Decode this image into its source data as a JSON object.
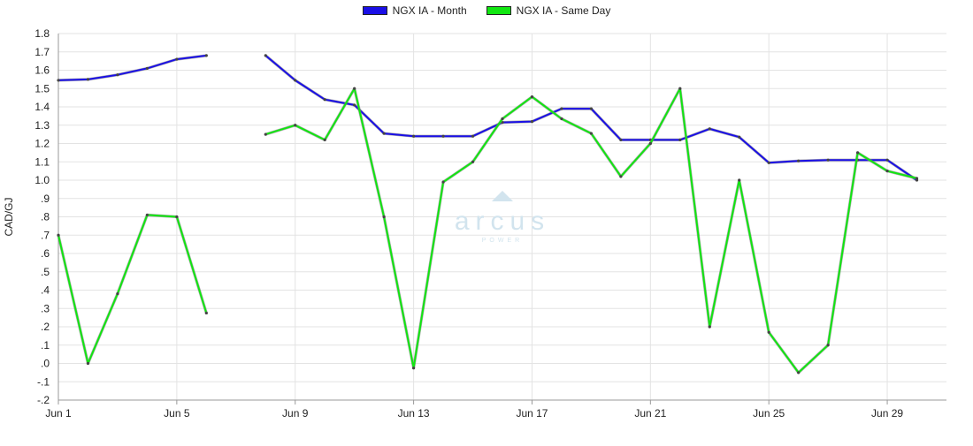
{
  "chart_data": {
    "type": "line",
    "ylabel": "CAD/GJ",
    "ylim": [
      -0.2,
      1.8
    ],
    "yticks": [
      -0.2,
      -0.1,
      0.0,
      0.1,
      0.2,
      0.3,
      0.4,
      0.5,
      0.6,
      0.7,
      0.8,
      0.9,
      1.0,
      1.1,
      1.2,
      1.3,
      1.4,
      1.5,
      1.6,
      1.7,
      1.8
    ],
    "ytick_labels": [
      "-.2",
      "-.1",
      ".0",
      ".1",
      ".2",
      ".3",
      ".4",
      ".5",
      ".6",
      ".7",
      ".8",
      ".9",
      "1.0",
      "1.1",
      "1.2",
      "1.3",
      "1.4",
      "1.5",
      "1.6",
      "1.7",
      "1.8"
    ],
    "xlim": [
      1,
      31
    ],
    "xticks": [
      1,
      5,
      9,
      13,
      17,
      21,
      25,
      29
    ],
    "xtick_labels": [
      "Jun 1",
      "Jun 5",
      "Jun 9",
      "Jun 13",
      "Jun 17",
      "Jun 21",
      "Jun 25",
      "Jun 29"
    ],
    "grid": true,
    "legend_position": "top-center",
    "x": [
      1,
      2,
      3,
      4,
      5,
      6,
      7,
      8,
      9,
      10,
      11,
      12,
      13,
      14,
      15,
      16,
      17,
      18,
      19,
      20,
      21,
      22,
      23,
      24,
      25,
      26,
      27,
      28,
      29,
      30
    ],
    "series": [
      {
        "name": "NGX IA - Month",
        "color": "#1a0fe6",
        "values": [
          1.545,
          1.55,
          1.575,
          1.61,
          1.66,
          1.68,
          null,
          1.68,
          1.545,
          1.44,
          1.41,
          1.255,
          1.24,
          1.24,
          1.24,
          1.315,
          1.32,
          1.39,
          1.39,
          1.22,
          1.22,
          1.22,
          1.28,
          1.235,
          1.095,
          1.105,
          1.11,
          1.11,
          1.11,
          1.0
        ]
      },
      {
        "name": "NGX IA - Same Day",
        "color": "#11e611",
        "values": [
          0.7,
          0.0,
          0.38,
          0.81,
          0.8,
          0.275,
          null,
          1.25,
          1.3,
          1.22,
          1.5,
          0.8,
          -0.025,
          0.99,
          1.1,
          1.335,
          1.455,
          1.335,
          1.255,
          1.02,
          1.2,
          1.5,
          0.2,
          1.0,
          0.17,
          -0.05,
          0.1,
          1.15,
          1.05,
          1.01
        ]
      }
    ]
  },
  "watermark": {
    "brand": "arcus",
    "tagline": "POWER"
  }
}
